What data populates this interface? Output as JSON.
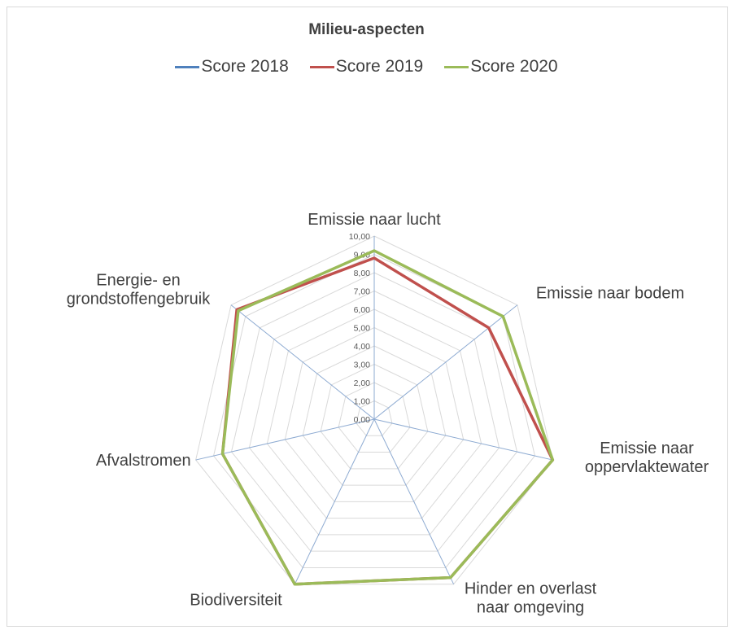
{
  "chart_data": {
    "type": "radar",
    "title": "Milieu-aspecten",
    "categories": [
      "Emissie naar lucht",
      "Emissie naar bodem",
      "Emissie naar oppervlaktewater",
      "Hinder en overlast naar omgeving",
      "Biodiversiteit",
      "Afvalstromen",
      "Energie- en grondstoffengebruik"
    ],
    "category_lines": [
      [
        "Emissie naar lucht"
      ],
      [
        "Emissie naar bodem"
      ],
      [
        "Emissie naar",
        "oppervlaktewater"
      ],
      [
        "Hinder en overlast",
        "naar omgeving"
      ],
      [
        "Biodiversiteit"
      ],
      [
        "Afvalstromen"
      ],
      [
        "Energie- en",
        "grondstoffengebruik"
      ]
    ],
    "series": [
      {
        "name": "Score 2018",
        "color": "#4f81bd",
        "values": [
          0,
          0,
          0,
          0,
          0,
          0,
          0
        ]
      },
      {
        "name": "Score 2019",
        "color": "#c0504d",
        "values": [
          8.8,
          8.0,
          10.0,
          9.6,
          10.0,
          8.5,
          9.6
        ]
      },
      {
        "name": "Score 2020",
        "color": "#9bbb59",
        "values": [
          9.2,
          9.0,
          10.0,
          9.6,
          10.0,
          8.5,
          9.5
        ]
      }
    ],
    "rlim": [
      0,
      10
    ],
    "ticks": [
      "0,00",
      "1,00",
      "2,00",
      "3,00",
      "4,00",
      "5,00",
      "6,00",
      "7,00",
      "8,00",
      "9,00",
      "10,00"
    ],
    "grid": true,
    "legend_position": "top"
  }
}
